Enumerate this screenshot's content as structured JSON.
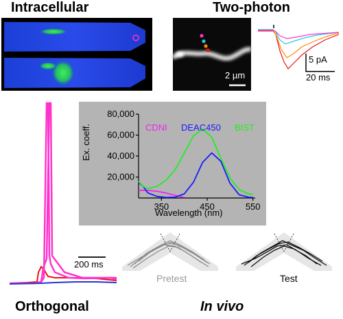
{
  "headings": {
    "intracellular": "Intracellular",
    "two_photon": "Two-photon",
    "orthogonal": "Orthogonal",
    "in_vivo": "In vivo"
  },
  "scale_bars": {
    "micrograph": "2 µm",
    "trace_current": "5 pA",
    "trace_time": "20 ms",
    "spike_time": "200 ms"
  },
  "behavior": {
    "pretest_label": "Pretest",
    "test_label": "Test"
  },
  "colors": {
    "magenta": "#ff33cc",
    "cyan": "#22ccdd",
    "orange": "#ff8800",
    "red": "#ee1111",
    "green": "#22dd22",
    "blue": "#2233dd",
    "gray_panel": "#b4b4b4"
  },
  "chart_data": {
    "type": "line",
    "xlabel": "Wavelength (nm)",
    "ylabel": "Ex. coeff.",
    "xlim": [
      300,
      555
    ],
    "ylim": [
      0,
      80000
    ],
    "xticks": [
      {
        "v": 350,
        "t": "350"
      },
      {
        "v": 450,
        "t": "450"
      },
      {
        "v": 550,
        "t": "550"
      }
    ],
    "yticks": [
      {
        "v": 20000,
        "t": "20,000"
      },
      {
        "v": 40000,
        "t": "40,000"
      },
      {
        "v": 60000,
        "t": "60,000"
      },
      {
        "v": 80000,
        "t": "80,000"
      }
    ],
    "legend_position": "top",
    "series": [
      {
        "name": "CDNI",
        "color": "#ee22ee",
        "x": [
          300,
          320,
          340,
          360,
          380,
          400
        ],
        "y": [
          7500,
          7200,
          6500,
          4800,
          2500,
          600
        ]
      },
      {
        "name": "DEAC450",
        "color": "#1a1aff",
        "x": [
          300,
          310,
          320,
          340,
          360,
          380,
          400,
          420,
          440,
          460,
          480,
          500,
          520,
          540,
          550
        ],
        "y": [
          15000,
          11000,
          5000,
          1500,
          600,
          800,
          4000,
          15000,
          34000,
          43000,
          35000,
          14000,
          3000,
          800,
          500
        ]
      },
      {
        "name": "BIST",
        "color": "#22ee22",
        "x": [
          300,
          310,
          320,
          340,
          360,
          380,
          400,
          420,
          440,
          460,
          480,
          500,
          520,
          540,
          550
        ],
        "y": [
          16000,
          11000,
          9000,
          11000,
          17000,
          27000,
          43000,
          59000,
          66000,
          58000,
          38000,
          19000,
          8000,
          4000,
          3500
        ]
      }
    ]
  }
}
